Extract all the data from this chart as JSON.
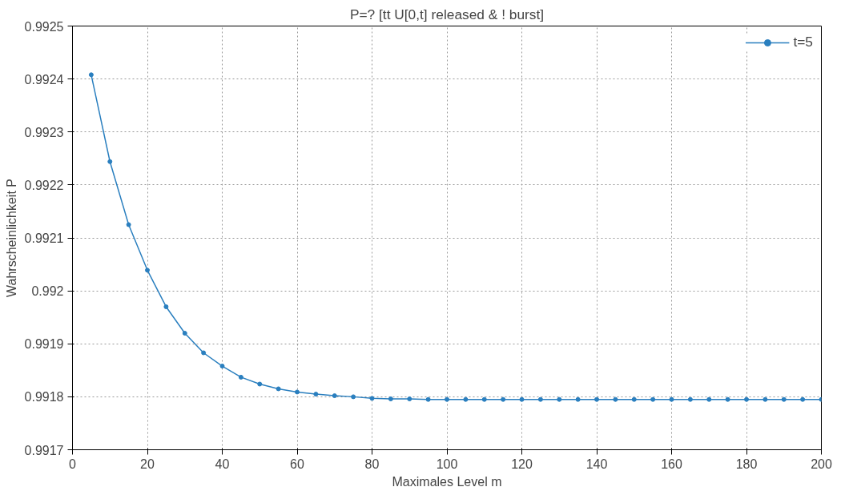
{
  "chart_data": {
    "type": "line",
    "title": "P=? [tt U[0,t] released & ! burst]",
    "xlabel": "Maximales Level m",
    "ylabel": "Wahrscheinlichkeit P",
    "x": [
      5,
      10,
      15,
      20,
      25,
      30,
      35,
      40,
      45,
      50,
      55,
      60,
      65,
      70,
      75,
      80,
      85,
      90,
      95,
      100,
      105,
      110,
      115,
      120,
      125,
      130,
      135,
      140,
      145,
      150,
      155,
      160,
      165,
      170,
      175,
      180,
      185,
      190,
      195,
      200
    ],
    "series": [
      {
        "name": "t=5",
        "color": "#2a7fbf",
        "values": [
          0.992408,
          0.992244,
          0.992125,
          0.992039,
          0.99197,
          0.99192,
          0.991883,
          0.991858,
          0.991837,
          0.991824,
          0.991815,
          0.991809,
          0.991805,
          0.991802,
          0.9918,
          0.991797,
          0.991796,
          0.991796,
          0.991795,
          0.991795,
          0.991795,
          0.991795,
          0.991795,
          0.991795,
          0.991795,
          0.991795,
          0.991795,
          0.991795,
          0.991795,
          0.991795,
          0.991795,
          0.991795,
          0.991795,
          0.991795,
          0.991795,
          0.991795,
          0.991795,
          0.991795,
          0.991795,
          0.991795
        ]
      }
    ],
    "xlim": [
      0,
      200
    ],
    "xticks": [
      0,
      20,
      40,
      60,
      80,
      100,
      120,
      140,
      160,
      180,
      200
    ],
    "ylim": [
      0.9917,
      0.9925
    ],
    "yticks": [
      {
        "value": 0.9917,
        "label": "0.9917"
      },
      {
        "value": 0.9918,
        "label": "0.9918"
      },
      {
        "value": 0.9919,
        "label": "0.9919"
      },
      {
        "value": 0.992,
        "label": "0.992"
      },
      {
        "value": 0.9921,
        "label": "0.9921"
      },
      {
        "value": 0.9922,
        "label": "0.9922"
      },
      {
        "value": 0.9923,
        "label": "0.9923"
      },
      {
        "value": 0.9924,
        "label": "0.9924"
      },
      {
        "value": 0.9925,
        "label": "0.9925"
      }
    ],
    "grid": true,
    "legend": "top right",
    "marker": "circle",
    "line_style": "solid"
  }
}
